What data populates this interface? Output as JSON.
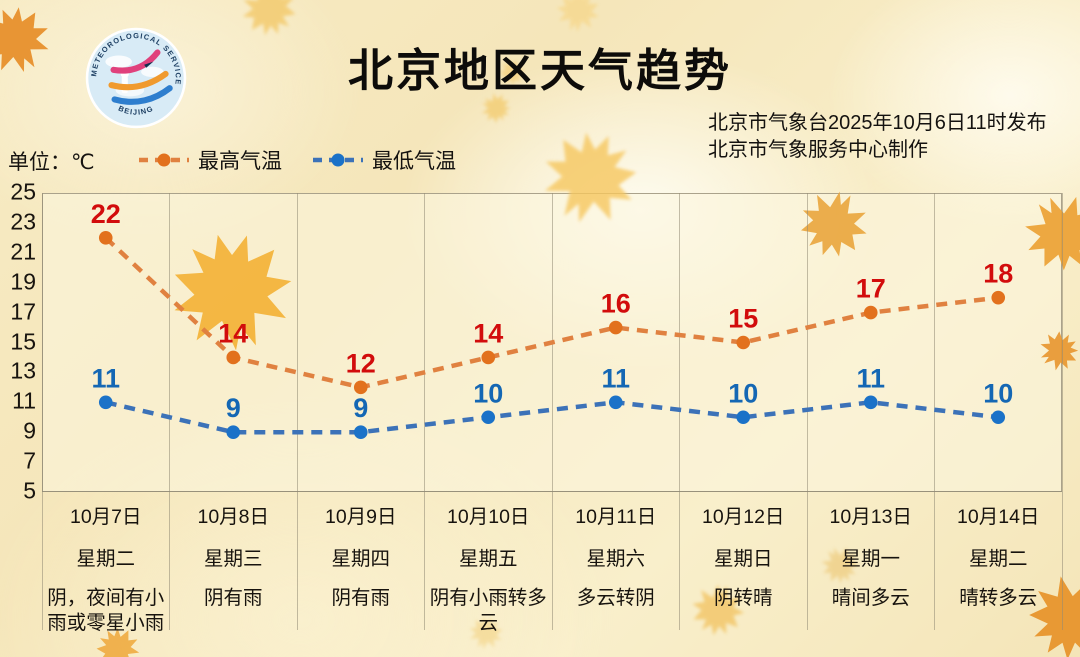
{
  "header": {
    "title": "北京地区天气趋势",
    "issued": "北京市气象台2025年10月6日11时发布",
    "produced": "北京市气象服务中心制作",
    "logo": {
      "ring_text_top": "METEOROLOGICAL SERVICE",
      "ring_text_bottom": "BEIJING 气象北京"
    }
  },
  "unit_label": "单位：℃",
  "chart_data": {
    "type": "line",
    "title": "北京地区天气趋势",
    "ylabel": "℃",
    "ylim": [
      5,
      25
    ],
    "yticks": [
      25,
      23,
      21,
      19,
      17,
      15,
      13,
      11,
      9,
      7,
      5
    ],
    "grid": "vertical-separators",
    "legend_position": "top-left",
    "categories": [
      {
        "date": "10月7日",
        "weekday": "星期二",
        "weather": "阴，夜间有小雨或零星小雨"
      },
      {
        "date": "10月8日",
        "weekday": "星期三",
        "weather": "阴有雨"
      },
      {
        "date": "10月9日",
        "weekday": "星期四",
        "weather": "阴有雨"
      },
      {
        "date": "10月10日",
        "weekday": "星期五",
        "weather": "阴有小雨转多云"
      },
      {
        "date": "10月11日",
        "weekday": "星期六",
        "weather": "多云转阴"
      },
      {
        "date": "10月12日",
        "weekday": "星期日",
        "weather": "阴转晴"
      },
      {
        "date": "10月13日",
        "weekday": "星期一",
        "weather": "晴间多云"
      },
      {
        "date": "10月14日",
        "weekday": "星期二",
        "weather": "晴转多云"
      }
    ],
    "series": [
      {
        "name": "最高气温",
        "values": [
          22,
          14,
          12,
          14,
          16,
          15,
          17,
          18
        ],
        "line_color": "#e08140",
        "point_color": "#e2711d",
        "label_color": "#d20c0c"
      },
      {
        "name": "最低气温",
        "values": [
          11,
          9,
          9,
          10,
          11,
          10,
          11,
          10
        ],
        "line_color": "#3c72b8",
        "point_color": "#1b72c8",
        "label_color": "#1467b4"
      }
    ]
  }
}
